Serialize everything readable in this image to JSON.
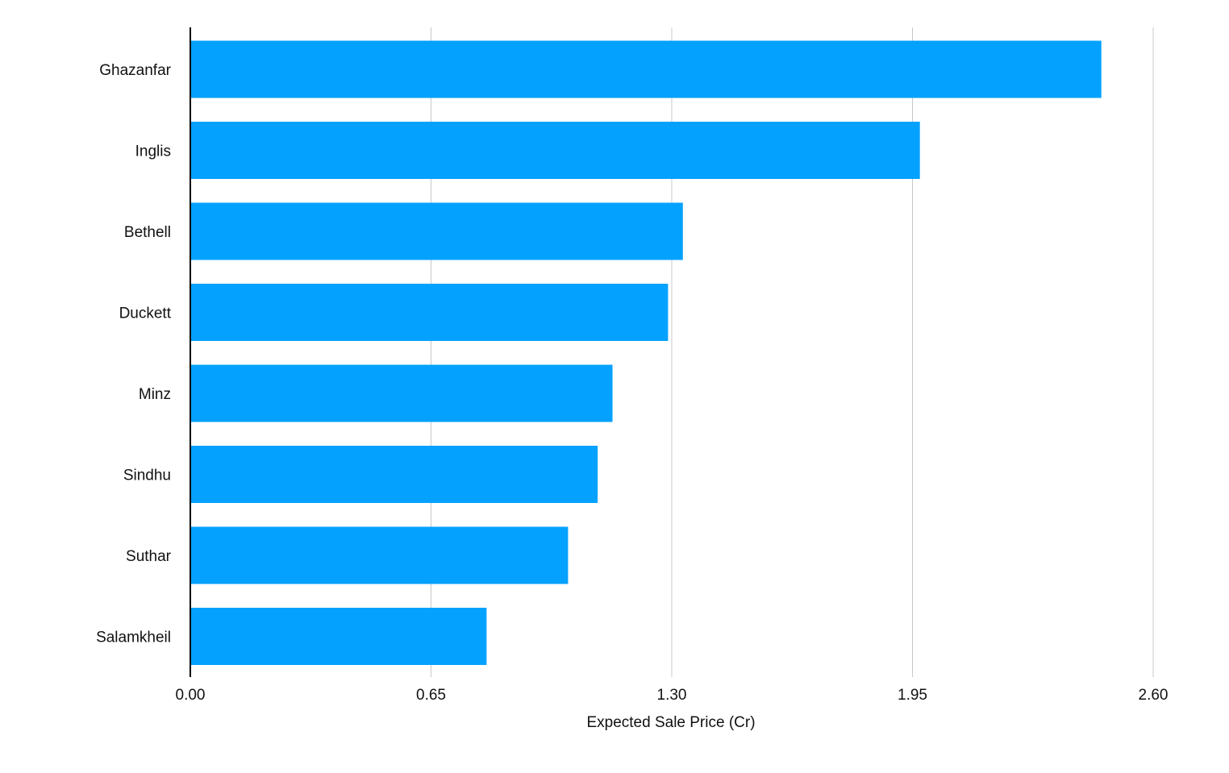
{
  "chart_data": {
    "type": "bar",
    "orientation": "horizontal",
    "title": "",
    "xlabel": "Expected Sale Price (Cr)",
    "ylabel": "",
    "xlim": [
      0,
      2.6
    ],
    "x_ticks": [
      "0.00",
      "0.65",
      "1.30",
      "1.95",
      "2.60"
    ],
    "grid": "vertical",
    "legend": "none",
    "bar_color": "#05A1FF",
    "categories": [
      "Ghazanfar",
      "Inglis",
      "Bethell",
      "Duckett",
      "Minz",
      "Sindhu",
      "Suthar",
      "Salamkheil"
    ],
    "values": [
      2.46,
      1.97,
      1.33,
      1.29,
      1.14,
      1.1,
      1.02,
      0.8
    ]
  }
}
